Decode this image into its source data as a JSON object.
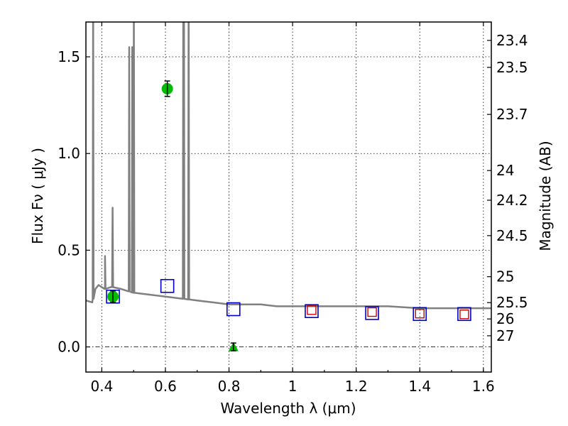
{
  "chart_data": {
    "type": "scatter",
    "xlabel": "Wavelength  λ (μm)",
    "ylabel": "Flux  Fν  ( μJy )",
    "y2label": "Magnitude (AB)",
    "xlim": [
      0.35,
      1.625
    ],
    "ylim": [
      -0.13,
      1.68
    ],
    "x_ticks": [
      0.4,
      0.6,
      0.8,
      1.0,
      1.2,
      1.4,
      1.6
    ],
    "x_tick_labels": [
      "0.4",
      "0.6",
      "0.8",
      "1",
      "1.2",
      "1.4",
      "1.6"
    ],
    "y_ticks": [
      0.0,
      0.5,
      1.0,
      1.5
    ],
    "y_tick_labels": [
      "0.0",
      "0.5",
      "1.0",
      "1.5"
    ],
    "y2_tick_labels": [
      "23.4",
      "23.5",
      "23.7",
      "24",
      "24.2",
      "24.5",
      "25",
      "25.5",
      "26",
      "27"
    ],
    "grid": true,
    "zero_line": true,
    "colors": {
      "model": "#808080",
      "observed": "#00bb00",
      "blue_square": "#0000cc",
      "red_square": "#cc0000"
    },
    "model_sed": {
      "name": "model spectrum",
      "continuum_x": [
        0.35,
        0.37,
        0.38,
        0.39,
        0.41,
        0.43,
        0.46,
        0.5,
        0.55,
        0.6,
        0.65,
        0.7,
        0.75,
        0.8,
        0.85,
        0.9,
        0.95,
        1.0,
        1.1,
        1.2,
        1.3,
        1.4,
        1.5,
        1.6,
        1.625
      ],
      "continuum_y": [
        0.24,
        0.23,
        0.3,
        0.32,
        0.3,
        0.31,
        0.3,
        0.28,
        0.27,
        0.26,
        0.25,
        0.24,
        0.23,
        0.22,
        0.22,
        0.22,
        0.21,
        0.21,
        0.21,
        0.21,
        0.21,
        0.2,
        0.2,
        0.2,
        0.2
      ],
      "emission_lines": [
        {
          "x": 0.3727,
          "peak": 1.9
        },
        {
          "x": 0.4101,
          "peak": 0.47
        },
        {
          "x": 0.434,
          "peak": 0.72
        },
        {
          "x": 0.4861,
          "peak": 1.55
        },
        {
          "x": 0.4959,
          "peak": 1.55
        },
        {
          "x": 0.5007,
          "peak": 1.9
        },
        {
          "x": 0.6563,
          "peak": 1.9
        },
        {
          "x": 0.6583,
          "peak": 1.9
        },
        {
          "x": 0.6731,
          "peak": 1.9
        }
      ]
    },
    "observed_points": [
      {
        "x": 0.435,
        "y": 0.26,
        "err": 0.03,
        "marker": "circle"
      },
      {
        "x": 0.606,
        "y": 1.335,
        "err": 0.04,
        "marker": "circle"
      },
      {
        "x": 0.814,
        "y": 0.0,
        "err": 0.02,
        "marker": "triangle"
      }
    ],
    "model_photometry_blue": [
      {
        "x": 0.435,
        "y": 0.26
      },
      {
        "x": 0.606,
        "y": 0.315
      },
      {
        "x": 0.814,
        "y": 0.195
      },
      {
        "x": 1.06,
        "y": 0.185
      },
      {
        "x": 1.25,
        "y": 0.175
      },
      {
        "x": 1.4,
        "y": 0.17
      },
      {
        "x": 1.54,
        "y": 0.17
      }
    ],
    "model_photometry_red": [
      {
        "x": 1.06,
        "y": 0.19
      },
      {
        "x": 1.25,
        "y": 0.18
      },
      {
        "x": 1.4,
        "y": 0.172
      },
      {
        "x": 1.54,
        "y": 0.168
      }
    ]
  }
}
